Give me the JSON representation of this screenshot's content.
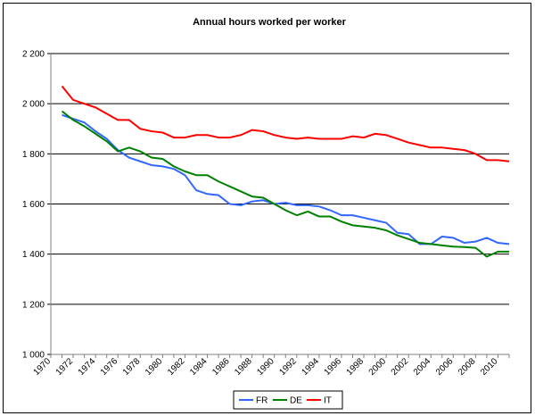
{
  "chart_data": {
    "type": "line",
    "title": "Annual hours worked per worker",
    "xlabel": "",
    "ylabel": "",
    "xlim": [
      1970,
      2011
    ],
    "ylim": [
      1000,
      2200
    ],
    "yticks": [
      1000,
      1200,
      1400,
      1600,
      1800,
      2000,
      2200
    ],
    "ytick_labels": [
      "1 000",
      "1 200",
      "1 400",
      "1 600",
      "1 800",
      "2 000",
      "2 200"
    ],
    "xticks": [
      1970,
      1972,
      1974,
      1976,
      1978,
      1980,
      1982,
      1984,
      1986,
      1988,
      1990,
      1992,
      1994,
      1996,
      1998,
      2000,
      2002,
      2004,
      2006,
      2008,
      2010
    ],
    "xtick_labels": [
      "1970",
      "1972",
      "1974",
      "1976",
      "1978",
      "1980",
      "1982",
      "1984",
      "1986",
      "1988",
      "1990",
      "1992",
      "1994",
      "1996",
      "1998",
      "2000",
      "2002",
      "2004",
      "2006",
      "2008",
      "2010"
    ],
    "grid": "horizontal",
    "legend_position": "bottom",
    "x": [
      1971,
      1972,
      1973,
      1974,
      1975,
      1976,
      1977,
      1978,
      1979,
      1980,
      1981,
      1982,
      1983,
      1984,
      1985,
      1986,
      1987,
      1988,
      1989,
      1990,
      1991,
      1992,
      1993,
      1994,
      1995,
      1996,
      1997,
      1998,
      1999,
      2000,
      2001,
      2002,
      2003,
      2004,
      2005,
      2006,
      2007,
      2008,
      2009,
      2010,
      2011
    ],
    "series": [
      {
        "name": "FR",
        "color": "#3366FF",
        "values": [
          1955,
          1940,
          1925,
          1890,
          1860,
          1815,
          1785,
          1770,
          1755,
          1750,
          1740,
          1715,
          1655,
          1640,
          1635,
          1600,
          1595,
          1610,
          1615,
          1600,
          1605,
          1595,
          1595,
          1590,
          1575,
          1555,
          1555,
          1545,
          1535,
          1525,
          1485,
          1480,
          1440,
          1440,
          1470,
          1465,
          1445,
          1450,
          1465,
          1445,
          1440
        ]
      },
      {
        "name": "DE",
        "color": "#008000",
        "values": [
          1970,
          1935,
          1910,
          1880,
          1850,
          1810,
          1825,
          1810,
          1785,
          1780,
          1750,
          1730,
          1715,
          1715,
          1690,
          1670,
          1650,
          1630,
          1625,
          1600,
          1575,
          1555,
          1570,
          1550,
          1550,
          1530,
          1515,
          1510,
          1505,
          1495,
          1475,
          1460,
          1445,
          1440,
          1435,
          1430,
          1428,
          1425,
          1390,
          1410,
          1410
        ]
      },
      {
        "name": "IT",
        "color": "#FF0000",
        "values": [
          2070,
          2015,
          2000,
          1985,
          1960,
          1935,
          1935,
          1900,
          1890,
          1885,
          1865,
          1865,
          1875,
          1875,
          1865,
          1865,
          1875,
          1895,
          1890,
          1875,
          1865,
          1860,
          1865,
          1860,
          1860,
          1860,
          1870,
          1865,
          1880,
          1875,
          1860,
          1845,
          1835,
          1825,
          1825,
          1820,
          1815,
          1800,
          1775,
          1775,
          1770
        ]
      }
    ]
  }
}
